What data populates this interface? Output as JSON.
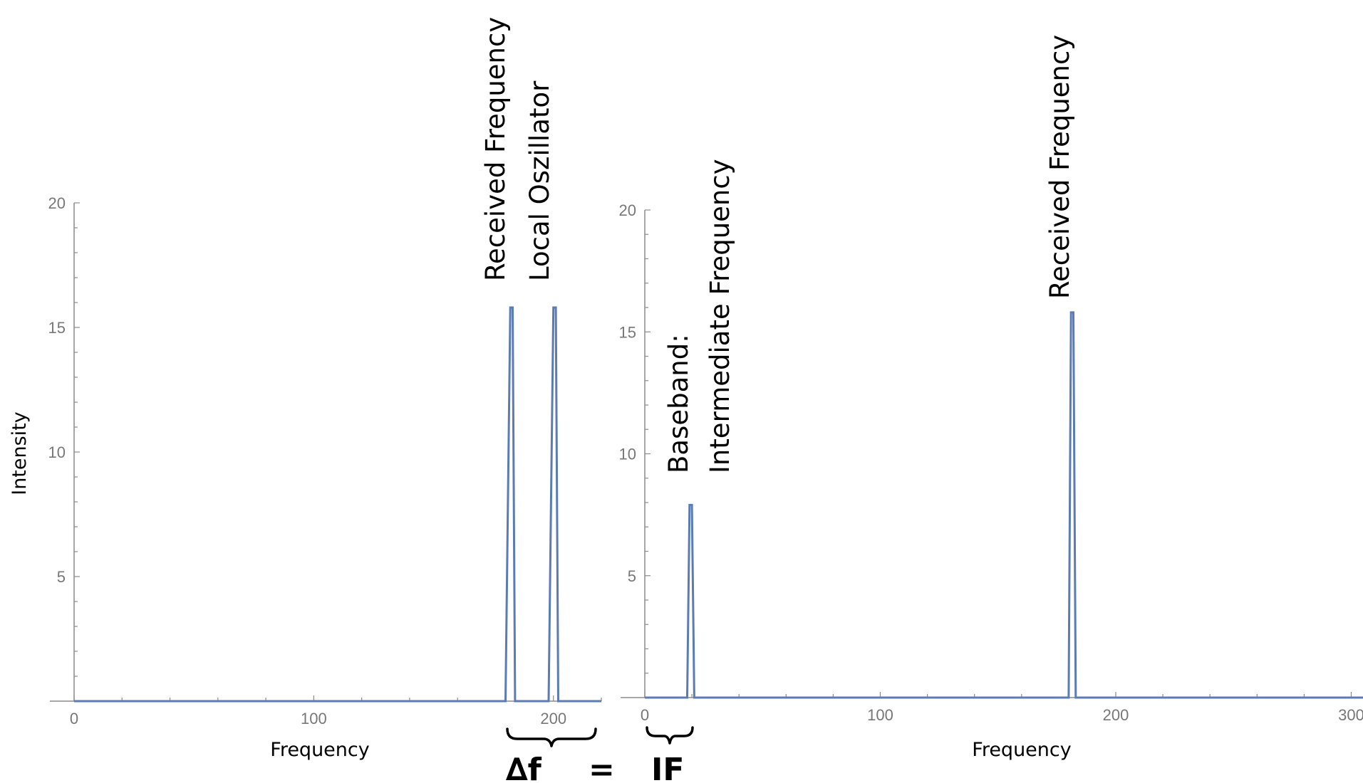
{
  "chart_data": [
    {
      "type": "line",
      "title": "",
      "xlabel": "Frequency",
      "ylabel": "Intensity",
      "xlim": [
        0,
        220
      ],
      "ylim": [
        0,
        20
      ],
      "x_ticks": [
        0,
        100,
        200
      ],
      "y_ticks": [
        5,
        10,
        15,
        20
      ],
      "grid": false,
      "series": [
        {
          "x": [
            0,
            180,
            182,
            183,
            184,
            198,
            200,
            201,
            202,
            220
          ],
          "y": [
            0,
            0,
            15.8,
            15.8,
            0,
            0,
            15.8,
            15.8,
            0,
            0
          ]
        }
      ],
      "annotations": [
        {
          "text": "Received Frequency",
          "x": 182.5
        },
        {
          "text": "Local Oszillator",
          "x": 200.5
        }
      ]
    },
    {
      "type": "line",
      "title": "",
      "xlabel": "Frequency",
      "ylabel": "",
      "xlim": [
        0,
        305
      ],
      "ylim": [
        0,
        20
      ],
      "x_ticks": [
        0,
        100,
        200,
        300
      ],
      "y_ticks": [
        5,
        10,
        15,
        20
      ],
      "grid": false,
      "series": [
        {
          "x": [
            0,
            18,
            19,
            20,
            21,
            180,
            181,
            182,
            183,
            305
          ],
          "y": [
            0,
            0,
            7.9,
            7.9,
            0,
            0,
            15.8,
            15.8,
            0,
            0
          ]
        }
      ],
      "annotations": [
        {
          "text": "Baseband:",
          "x": 19.5
        },
        {
          "text": "Intermediate Frequency",
          "x": 19.5
        },
        {
          "text": "Received Frequency",
          "x": 181.5
        }
      ]
    }
  ],
  "formula": {
    "delta_f": "∆f",
    "equals": "=",
    "if": "IF"
  }
}
